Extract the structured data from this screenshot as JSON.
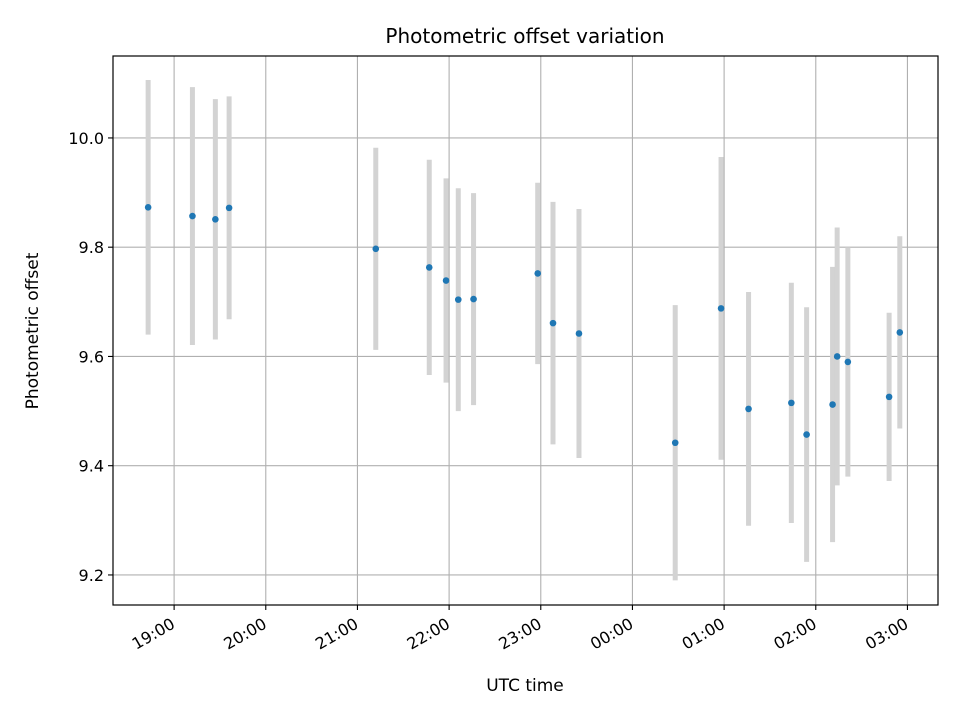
{
  "chart_data": {
    "type": "scatter",
    "title": "Photometric offset variation",
    "xlabel": "UTC time",
    "ylabel": "Photometric offset",
    "xlim": [
      "2024-01-01T18:20",
      "2024-01-02T03:20"
    ],
    "ylim": [
      9.145,
      10.15
    ],
    "x_ticks": [
      {
        "t": "2024-01-01T19:00",
        "label": "19:00"
      },
      {
        "t": "2024-01-01T20:00",
        "label": "20:00"
      },
      {
        "t": "2024-01-01T21:00",
        "label": "21:00"
      },
      {
        "t": "2024-01-01T22:00",
        "label": "22:00"
      },
      {
        "t": "2024-01-01T23:00",
        "label": "23:00"
      },
      {
        "t": "2024-01-02T00:00",
        "label": "00:00"
      },
      {
        "t": "2024-01-02T01:00",
        "label": "01:00"
      },
      {
        "t": "2024-01-02T02:00",
        "label": "02:00"
      },
      {
        "t": "2024-01-02T03:00",
        "label": "03:00"
      }
    ],
    "y_ticks": [
      {
        "v": 9.2,
        "label": "9.2"
      },
      {
        "v": 9.4,
        "label": "9.4"
      },
      {
        "v": 9.6,
        "label": "9.6"
      },
      {
        "v": 9.8,
        "label": "9.8"
      },
      {
        "v": 10.0,
        "label": "10.0"
      }
    ],
    "grid": true,
    "point_color": "#1f77b4",
    "errorbar_color": "#d3d3d3",
    "points": [
      {
        "t": "2024-01-01T18:43",
        "y": 9.873,
        "err": 0.233
      },
      {
        "t": "2024-01-01T19:12",
        "y": 9.857,
        "err": 0.236
      },
      {
        "t": "2024-01-01T19:27",
        "y": 9.851,
        "err": 0.22
      },
      {
        "t": "2024-01-01T19:36",
        "y": 9.872,
        "err": 0.204
      },
      {
        "t": "2024-01-01T21:12",
        "y": 9.797,
        "err": 0.185
      },
      {
        "t": "2024-01-01T21:47",
        "y": 9.763,
        "err": 0.197
      },
      {
        "t": "2024-01-01T21:58",
        "y": 9.739,
        "err": 0.187
      },
      {
        "t": "2024-01-01T22:06",
        "y": 9.704,
        "err": 0.204
      },
      {
        "t": "2024-01-01T22:16",
        "y": 9.705,
        "err": 0.194
      },
      {
        "t": "2024-01-01T22:58",
        "y": 9.752,
        "err": 0.166
      },
      {
        "t": "2024-01-01T23:08",
        "y": 9.661,
        "err": 0.222
      },
      {
        "t": "2024-01-01T23:25",
        "y": 9.642,
        "err": 0.228
      },
      {
        "t": "2024-01-02T00:28",
        "y": 9.442,
        "err": 0.252
      },
      {
        "t": "2024-01-02T00:58",
        "y": 9.688,
        "err": 0.277
      },
      {
        "t": "2024-01-02T01:16",
        "y": 9.504,
        "err": 0.214
      },
      {
        "t": "2024-01-02T01:44",
        "y": 9.515,
        "err": 0.22
      },
      {
        "t": "2024-01-02T01:54",
        "y": 9.457,
        "err": 0.233
      },
      {
        "t": "2024-01-02T02:11",
        "y": 9.512,
        "err": 0.252
      },
      {
        "t": "2024-01-02T02:14",
        "y": 9.6,
        "err": 0.236
      },
      {
        "t": "2024-01-02T02:21",
        "y": 9.59,
        "err": 0.21
      },
      {
        "t": "2024-01-02T02:48",
        "y": 9.526,
        "err": 0.154
      },
      {
        "t": "2024-01-02T02:55",
        "y": 9.644,
        "err": 0.176
      }
    ]
  }
}
